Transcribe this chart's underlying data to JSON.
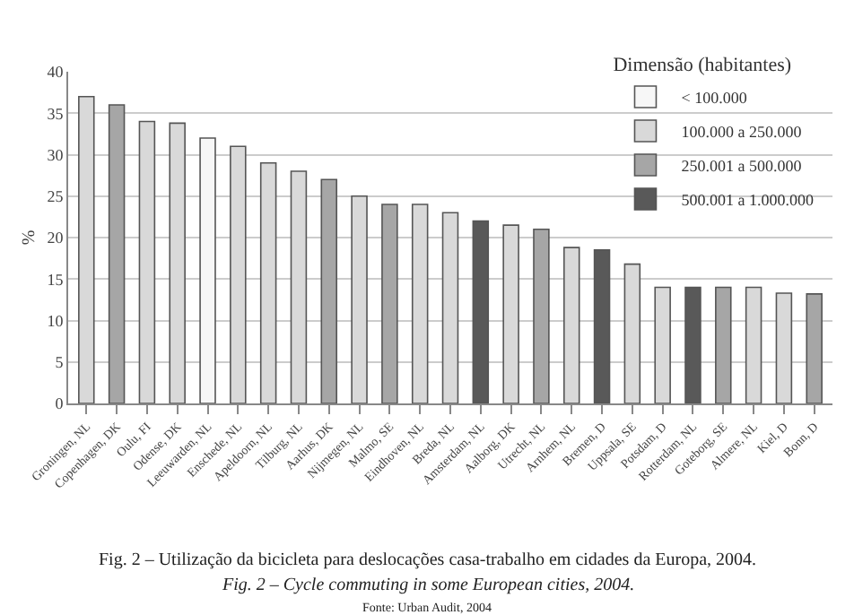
{
  "chart_data": {
    "type": "bar",
    "stacked": true,
    "ylabel": "%",
    "legend_title": "Dimensão (habitantes)",
    "categories": [
      "Groningen, NL",
      "Copenhagen, DK",
      "Oulu, FI",
      "Odense, DK",
      "Leeuwarden, NL",
      "Enschede, NL",
      "Apeldoorn, NL",
      "Tilburg, NL",
      "Aarhus, DK",
      "Nijmegen, NL",
      "Malmo, SE",
      "Eindhoven, NL",
      "Breda, NL",
      "Amsterdam, NL",
      "Aalborg, DK",
      "Utrecht, NL",
      "Arnhem, NL",
      "Bremen, D",
      "Uppsala, SE",
      "Potsdam, D",
      "Rotterdam, NL",
      "Goteborg, SE",
      "Almere, NL",
      "Kiel, D",
      "Bonn, D"
    ],
    "series": [
      {
        "name": "< 100.000",
        "color": "#f7f7f7",
        "values": [
          null,
          null,
          null,
          null,
          32,
          null,
          null,
          null,
          null,
          null,
          null,
          null,
          null,
          null,
          null,
          null,
          null,
          null,
          null,
          null,
          null,
          null,
          null,
          null,
          null
        ]
      },
      {
        "name": "100.000 a 250.000",
        "color": "#d9d9d9",
        "values": [
          37,
          null,
          34,
          33.8,
          null,
          31,
          29,
          28,
          null,
          25,
          null,
          24,
          23,
          null,
          21.5,
          null,
          18.8,
          null,
          16.8,
          14,
          null,
          null,
          14,
          13.3,
          null
        ]
      },
      {
        "name": "250.001 a 500.000",
        "color": "#a6a6a6",
        "values": [
          null,
          36,
          null,
          null,
          null,
          null,
          null,
          null,
          27,
          null,
          24,
          null,
          null,
          null,
          null,
          21,
          null,
          null,
          null,
          null,
          null,
          14,
          null,
          null,
          13.2
        ]
      },
      {
        "name": "500.001 a 1.000.000",
        "color": "#595959",
        "values": [
          null,
          null,
          null,
          null,
          null,
          null,
          null,
          null,
          null,
          null,
          null,
          null,
          null,
          22,
          null,
          null,
          null,
          18.5,
          null,
          null,
          14,
          null,
          null,
          null,
          null
        ]
      }
    ],
    "ylim": [
      0,
      40
    ],
    "yticks": [
      0,
      5,
      10,
      15,
      20,
      25,
      30,
      35,
      40
    ],
    "grid": "y",
    "legend": "top right",
    "annotations": [
      "Fig. 2 – Utilização da bicicleta para deslocações casa-trabalho em cidades da Europa, 2004.",
      "Fig. 2 – Cycle commuting in some European cities, 2004.",
      "Fonte: Urban Audit, 2004"
    ]
  }
}
